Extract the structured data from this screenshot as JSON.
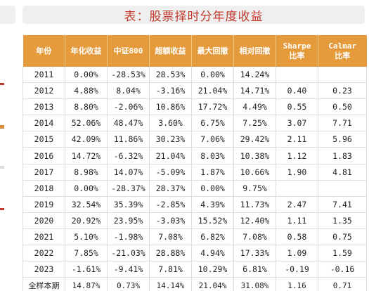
{
  "title": "表：股票择时分年度收益",
  "table": {
    "headers": [
      {
        "line1": "年份",
        "line2": ""
      },
      {
        "line1": "年化收益",
        "line2": ""
      },
      {
        "line1": "中证800",
        "line2": ""
      },
      {
        "line1": "超额收益",
        "line2": ""
      },
      {
        "line1": "最大回撤",
        "line2": ""
      },
      {
        "line1": "相对回撤",
        "line2": ""
      },
      {
        "line1": "Sharpe",
        "line2": "比率"
      },
      {
        "line1": "Calmar",
        "line2": "比率"
      }
    ],
    "rows": [
      [
        "2011",
        "0.00%",
        "-28.53%",
        "28.53%",
        "0.00%",
        "14.24%",
        "",
        ""
      ],
      [
        "2012",
        "4.88%",
        "8.04%",
        "-3.16%",
        "21.04%",
        "14.71%",
        "0.40",
        "0.23"
      ],
      [
        "2013",
        "8.80%",
        "-2.06%",
        "10.86%",
        "17.72%",
        "4.49%",
        "0.55",
        "0.50"
      ],
      [
        "2014",
        "52.06%",
        "48.47%",
        "3.60%",
        "6.75%",
        "7.25%",
        "3.07",
        "7.71"
      ],
      [
        "2015",
        "42.09%",
        "11.86%",
        "30.23%",
        "7.06%",
        "29.42%",
        "2.11",
        "5.96"
      ],
      [
        "2016",
        "14.72%",
        "-6.32%",
        "21.04%",
        "8.03%",
        "10.38%",
        "1.12",
        "1.83"
      ],
      [
        "2017",
        "8.98%",
        "14.07%",
        "-5.09%",
        "1.87%",
        "10.66%",
        "1.90",
        "4.81"
      ],
      [
        "2018",
        "0.00%",
        "-28.37%",
        "28.37%",
        "0.00%",
        "9.75%",
        "",
        ""
      ],
      [
        "2019",
        "32.54%",
        "35.39%",
        "-2.85%",
        "4.39%",
        "11.73%",
        "2.47",
        "7.41"
      ],
      [
        "2020",
        "20.92%",
        "23.95%",
        "-3.03%",
        "15.52%",
        "12.40%",
        "1.11",
        "1.35"
      ],
      [
        "2021",
        "5.10%",
        "-1.98%",
        "7.08%",
        "6.82%",
        "7.08%",
        "0.58",
        "0.75"
      ],
      [
        "2022",
        "7.85%",
        "-21.03%",
        "28.88%",
        "4.94%",
        "17.33%",
        "1.09",
        "1.59"
      ],
      [
        "2023",
        "-1.61%",
        "-9.41%",
        "7.81%",
        "10.29%",
        "6.81%",
        "-0.19",
        "-0.16"
      ],
      [
        "全样本期",
        "14.87%",
        "0.73%",
        "14.14%",
        "21.04%",
        "31.08%",
        "1.16",
        "0.71"
      ]
    ]
  },
  "colors": {
    "title": "#c0392b",
    "header_bg": "#e59b3c",
    "title_bar_bg": "#efefef"
  }
}
